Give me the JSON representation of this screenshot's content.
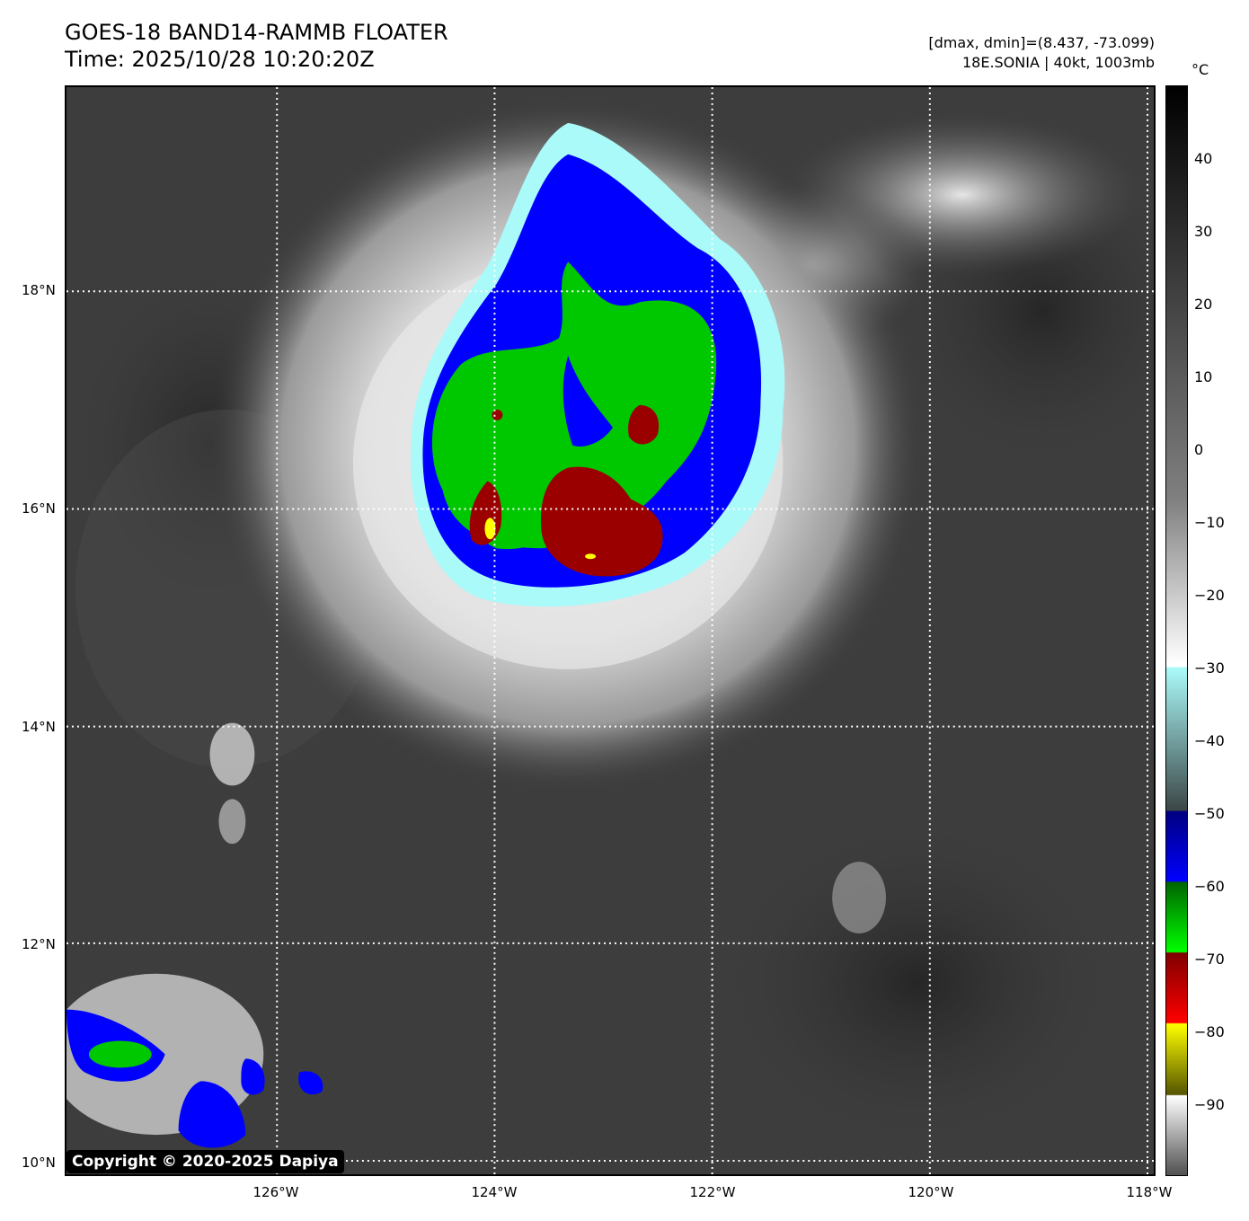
{
  "title": {
    "line1": "GOES-18 BAND14-RAMMB FLOATER",
    "line2": "Time: 2025/10/28 10:20:20Z"
  },
  "meta": {
    "range_text": "[dmax, dmin]=(8.437, -73.099)",
    "storm_text": "18E.SONIA | 40kt, 1003mb"
  },
  "map": {
    "lat_labels": [
      "18°N",
      "16°N",
      "14°N",
      "12°N",
      "10°N"
    ],
    "lon_labels": [
      "126°W",
      "124°W",
      "122°W",
      "120°W",
      "118°W"
    ],
    "copyright": "Copyright © 2020-2025 Dapiya"
  },
  "colorbar": {
    "unit": "°C",
    "ticks": [
      "40",
      "30",
      "20",
      "10",
      "0",
      "−10",
      "−20",
      "−30",
      "−40",
      "−50",
      "−60",
      "−70",
      "−80",
      "−90"
    ],
    "colors": {
      "warm_top": "#000000",
      "gray_mid": "#808080",
      "white": "#ffffff",
      "cyan": "#aafafa",
      "teal_gray": "#3c4646",
      "navy": "#000080",
      "blue": "#0000ff",
      "green": "#00ff00",
      "dark_green": "#006400",
      "dark_red": "#800000",
      "red": "#ff0000",
      "yellow": "#ffff00",
      "olive": "#555500"
    }
  }
}
